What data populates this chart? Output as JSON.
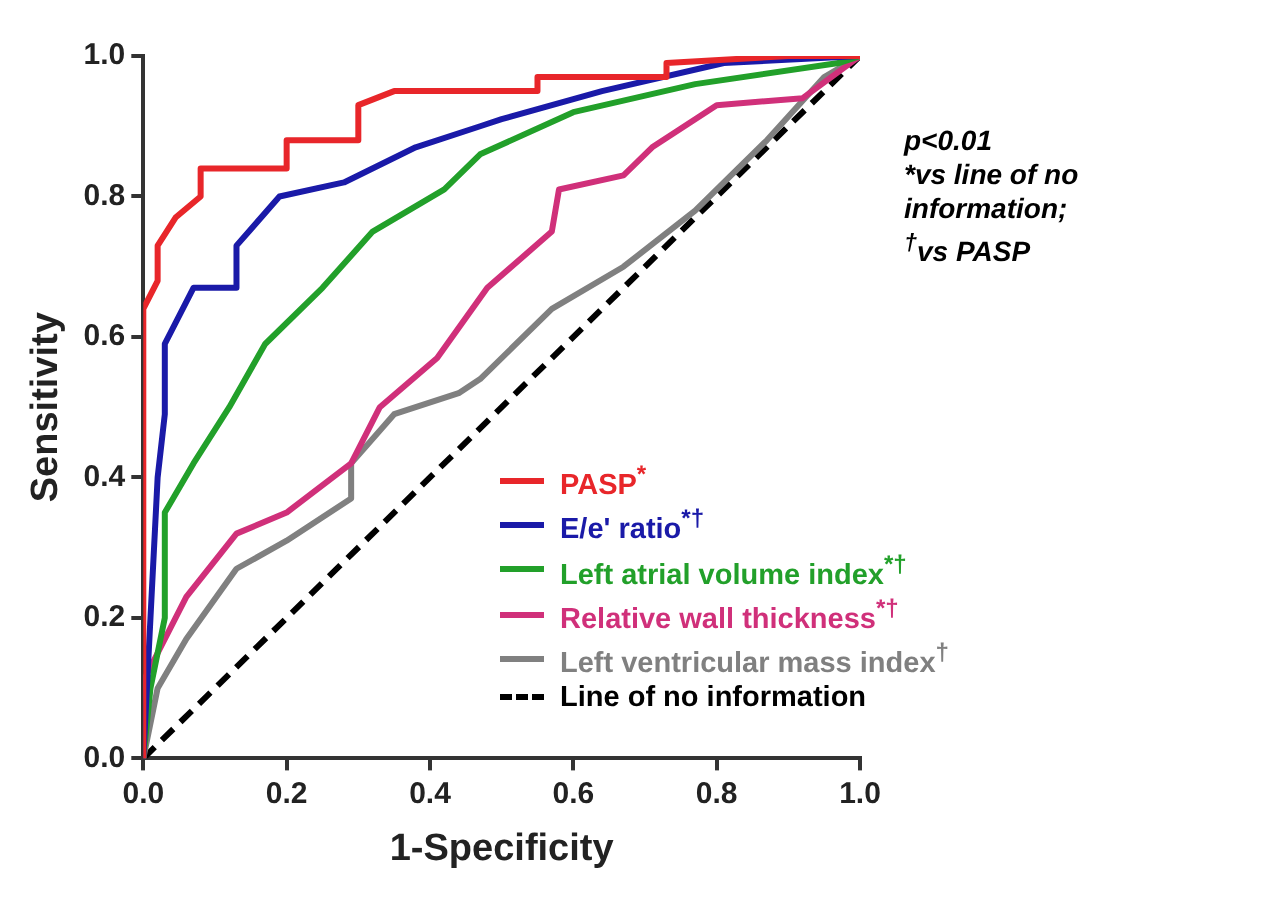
{
  "chart_data": {
    "type": "line",
    "xlabel": "1-Specificity",
    "ylabel": "Sensitivity",
    "xlim": [
      0,
      1
    ],
    "ylim": [
      0,
      1
    ],
    "xticks": [
      {
        "value": 0,
        "label": "0.0"
      },
      0.2,
      0.4,
      0.6,
      0.8,
      {
        "value": 1,
        "label": "1.0"
      }
    ],
    "yticks": [
      {
        "value": 0,
        "label": "0.0"
      },
      0.2,
      0.4,
      0.6,
      0.8,
      {
        "value": 1,
        "label": "1.0"
      }
    ],
    "grid": false,
    "legend": "bottom right",
    "marker": "none",
    "annotations": [
      "p<0.01",
      "*vs line of no information;",
      "$^{†}$vs PASP"
    ],
    "series": [
      {
        "name": "PASP$^{*}$",
        "color": "#e8262a",
        "line_style": "solid",
        "x": [
          0,
          0,
          0.02,
          0.02,
          0.045,
          0.08,
          0.08,
          0.2,
          0.2,
          0.3,
          0.3,
          0.35,
          0.55,
          0.55,
          0.73,
          0.73,
          0.9,
          1
        ],
        "values": [
          0,
          0.64,
          0.68,
          0.73,
          0.77,
          0.8,
          0.84,
          0.84,
          0.88,
          0.88,
          0.93,
          0.95,
          0.95,
          0.97,
          0.97,
          0.99,
          1,
          1
        ]
      },
      {
        "name": "E/e' ratio$^{*†}$",
        "color": "#1a1aa8",
        "line_style": "solid",
        "x": [
          0,
          0.01,
          0.02,
          0.03,
          0.03,
          0.07,
          0.13,
          0.13,
          0.19,
          0.28,
          0.38,
          0.47,
          0.5,
          0.64,
          0.81,
          1
        ],
        "values": [
          0,
          0.2,
          0.4,
          0.49,
          0.59,
          0.67,
          0.67,
          0.73,
          0.8,
          0.82,
          0.87,
          0.9,
          0.91,
          0.95,
          0.99,
          1
        ]
      },
      {
        "name": "Left atrial volume index$^{*†}$",
        "color": "#22a02a",
        "line_style": "solid",
        "x": [
          0,
          0.01,
          0.03,
          0.03,
          0.07,
          0.12,
          0.17,
          0.25,
          0.32,
          0.42,
          0.47,
          0.6,
          0.77,
          0.97,
          1
        ],
        "values": [
          0,
          0.1,
          0.2,
          0.35,
          0.42,
          0.5,
          0.59,
          0.67,
          0.75,
          0.81,
          0.86,
          0.92,
          0.96,
          0.99,
          1
        ]
      },
      {
        "name": "Relative wall thickness$^{*†}$",
        "color": "#d0307a",
        "line_style": "solid",
        "x": [
          0,
          0,
          0.06,
          0.13,
          0.2,
          0.29,
          0.33,
          0.41,
          0.48,
          0.57,
          0.58,
          0.67,
          0.71,
          0.8,
          0.92,
          1
        ],
        "values": [
          0,
          0.11,
          0.23,
          0.32,
          0.35,
          0.42,
          0.5,
          0.57,
          0.67,
          0.75,
          0.81,
          0.83,
          0.87,
          0.93,
          0.94,
          1
        ]
      },
      {
        "name": "Left ventricular mass index$^{†}$",
        "color": "#808080",
        "line_style": "solid",
        "x": [
          0,
          0.02,
          0.06,
          0.13,
          0.2,
          0.29,
          0.29,
          0.35,
          0.44,
          0.47,
          0.57,
          0.67,
          0.77,
          0.87,
          0.95,
          1
        ],
        "values": [
          0,
          0.1,
          0.17,
          0.27,
          0.31,
          0.37,
          0.42,
          0.49,
          0.52,
          0.54,
          0.64,
          0.7,
          0.78,
          0.88,
          0.97,
          1
        ]
      },
      {
        "name": "Line of no information",
        "color": "#000000",
        "line_style": "dashed",
        "x": [
          0,
          1
        ],
        "values": [
          0,
          1
        ]
      }
    ]
  }
}
